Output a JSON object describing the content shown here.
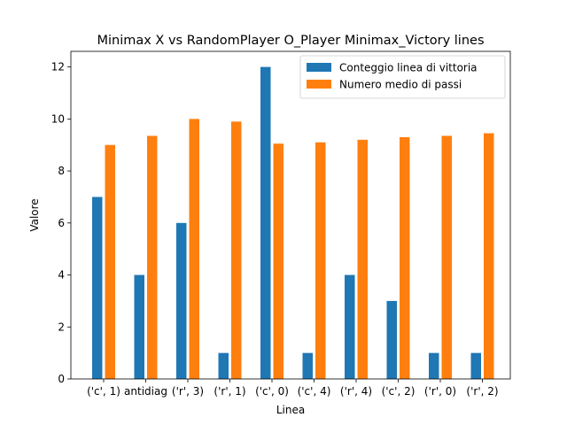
{
  "chart_data": {
    "type": "bar",
    "title": "Minimax X vs RandomPlayer O_Player Minimax_Victory lines",
    "xlabel": "Linea",
    "ylabel": "Valore",
    "ylim": [
      0,
      12.6
    ],
    "yticks": [
      0,
      2,
      4,
      6,
      8,
      10,
      12
    ],
    "categories": [
      "('c', 1)",
      "antidiag",
      "('r', 3)",
      "('r', 1)",
      "('c', 0)",
      "('c', 4)",
      "('r', 4)",
      "('c', 2)",
      "('r', 0)",
      "('r', 2)"
    ],
    "series": [
      {
        "name": "Conteggio linea di vittoria",
        "color": "#1f77b4",
        "values": [
          7,
          4,
          6,
          1,
          12,
          1,
          4,
          3,
          1,
          1
        ]
      },
      {
        "name": "Numero medio di passi",
        "color": "#ff7f0e",
        "values": [
          9.0,
          9.35,
          10.0,
          9.9,
          9.05,
          9.1,
          9.2,
          9.3,
          9.35,
          9.45
        ]
      }
    ],
    "legend": "top-right",
    "grid": false
  }
}
